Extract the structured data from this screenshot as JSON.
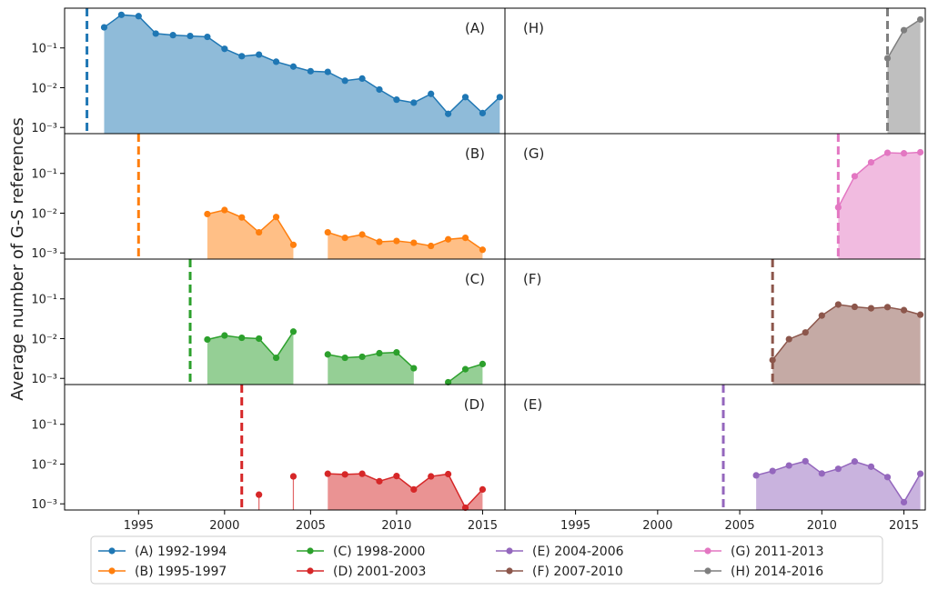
{
  "chart_data": {
    "type": "area",
    "ylabel": "Average number of G-S references",
    "yscale": "log",
    "ylim": [
      0.0007,
      1.0
    ],
    "xlim": [
      1990.7,
      2016.3
    ],
    "x_ticks": [
      1995,
      2000,
      2005,
      2010,
      2015
    ],
    "y_ticks": [
      {
        "value": 0.1,
        "label": "10⁻¹"
      },
      {
        "value": 0.01,
        "label": "10⁻²"
      },
      {
        "value": 0.001,
        "label": "10⁻³"
      }
    ],
    "grid": false,
    "legend_position": "bottom",
    "legend_columns": 4,
    "series": [
      {
        "tag": "(A)",
        "name": "(A) 1992-1994",
        "color": "#1f77b4",
        "start_year": 1992,
        "segments": [
          [
            [
              1993,
              0.33
            ],
            [
              1994,
              0.68
            ],
            [
              1995,
              0.63
            ],
            [
              1996,
              0.23
            ],
            [
              1997,
              0.21
            ],
            [
              1998,
              0.2
            ],
            [
              1999,
              0.19
            ],
            [
              2000,
              0.095
            ],
            [
              2001,
              0.062
            ],
            [
              2002,
              0.068
            ],
            [
              2003,
              0.045
            ],
            [
              2004,
              0.034
            ],
            [
              2005,
              0.026
            ],
            [
              2006,
              0.025
            ],
            [
              2007,
              0.015
            ],
            [
              2008,
              0.017
            ],
            [
              2009,
              0.009
            ],
            [
              2010,
              0.005
            ],
            [
              2011,
              0.0042
            ],
            [
              2012,
              0.007
            ],
            [
              2013,
              0.0022
            ],
            [
              2014,
              0.0058
            ],
            [
              2015,
              0.0023
            ],
            [
              2016,
              0.0058
            ]
          ]
        ],
        "stems": []
      },
      {
        "tag": "(B)",
        "name": "(B) 1995-1997",
        "color": "#ff7f0e",
        "start_year": 1995,
        "segments": [
          [
            [
              1999,
              0.0095
            ],
            [
              2000,
              0.012
            ],
            [
              2001,
              0.0078
            ],
            [
              2002,
              0.0033
            ],
            [
              2003,
              0.008
            ],
            [
              2004,
              0.0016
            ]
          ],
          [
            [
              2006,
              0.0033
            ],
            [
              2007,
              0.0024
            ],
            [
              2008,
              0.0029
            ],
            [
              2009,
              0.0019
            ],
            [
              2010,
              0.002
            ],
            [
              2011,
              0.0018
            ],
            [
              2012,
              0.0015
            ],
            [
              2013,
              0.0022
            ],
            [
              2014,
              0.0024
            ],
            [
              2015,
              0.0012
            ]
          ]
        ],
        "stems": []
      },
      {
        "tag": "(C)",
        "name": "(C) 1998-2000",
        "color": "#2ca02c",
        "start_year": 1998,
        "segments": [
          [
            [
              1999,
              0.0095
            ],
            [
              2000,
              0.012
            ],
            [
              2001,
              0.0105
            ],
            [
              2002,
              0.01
            ],
            [
              2003,
              0.0033
            ],
            [
              2004,
              0.015
            ]
          ],
          [
            [
              2006,
              0.004
            ],
            [
              2007,
              0.0033
            ],
            [
              2008,
              0.0035
            ],
            [
              2009,
              0.0043
            ],
            [
              2010,
              0.0045
            ],
            [
              2011,
              0.0018
            ]
          ],
          [
            [
              2013,
              0.0008
            ],
            [
              2014,
              0.0017
            ],
            [
              2015,
              0.0023
            ]
          ]
        ],
        "stems": []
      },
      {
        "tag": "(D)",
        "name": "(D) 2001-2003",
        "color": "#d62728",
        "start_year": 2001,
        "segments": [
          [
            [
              2006,
              0.0057
            ],
            [
              2007,
              0.0055
            ],
            [
              2008,
              0.0057
            ],
            [
              2009,
              0.0037
            ],
            [
              2010,
              0.005
            ],
            [
              2011,
              0.0023
            ],
            [
              2012,
              0.0049
            ],
            [
              2013,
              0.0056
            ],
            [
              2014,
              0.0008
            ],
            [
              2015,
              0.0023
            ]
          ]
        ],
        "stems": [
          [
            2002,
            0.0017
          ],
          [
            2004,
            0.0049
          ]
        ]
      },
      {
        "tag": "(E)",
        "name": "(E) 2004-2006",
        "color": "#9467bd",
        "start_year": 2004,
        "segments": [
          [
            [
              2006,
              0.0052
            ],
            [
              2007,
              0.0067
            ],
            [
              2008,
              0.0092
            ],
            [
              2009,
              0.0118
            ],
            [
              2010,
              0.0058
            ],
            [
              2011,
              0.0076
            ],
            [
              2012,
              0.0116
            ],
            [
              2013,
              0.0086
            ],
            [
              2014,
              0.0047
            ],
            [
              2015,
              0.0011
            ],
            [
              2016,
              0.0057
            ]
          ]
        ],
        "stems": []
      },
      {
        "tag": "(F)",
        "name": "(F) 2007-2010",
        "color": "#8c564b",
        "start_year": 2007,
        "segments": [
          [
            [
              2007,
              0.0029
            ],
            [
              2008,
              0.0097
            ],
            [
              2009,
              0.0143
            ],
            [
              2010,
              0.038
            ],
            [
              2011,
              0.072
            ],
            [
              2012,
              0.063
            ],
            [
              2013,
              0.058
            ],
            [
              2014,
              0.062
            ],
            [
              2015,
              0.052
            ],
            [
              2016,
              0.04
            ]
          ]
        ],
        "stems": []
      },
      {
        "tag": "(G)",
        "name": "(G) 2011-2013",
        "color": "#e377c2",
        "start_year": 2011,
        "segments": [
          [
            [
              2011,
              0.014
            ],
            [
              2012,
              0.085
            ],
            [
              2013,
              0.19
            ],
            [
              2014,
              0.33
            ],
            [
              2015,
              0.32
            ],
            [
              2016,
              0.34
            ]
          ]
        ],
        "stems": []
      },
      {
        "tag": "(H)",
        "name": "(H) 2014-2016",
        "color": "#7f7f7f",
        "start_year": 2014,
        "segments": [
          [
            [
              2014,
              0.055
            ],
            [
              2015,
              0.28
            ],
            [
              2016,
              0.52
            ]
          ]
        ],
        "stems": []
      }
    ],
    "left_column_order": [
      "(A)",
      "(B)",
      "(C)",
      "(D)"
    ],
    "right_column_order": [
      "(H)",
      "(G)",
      "(F)",
      "(E)"
    ],
    "legend_order": [
      "(A)",
      "(B)",
      "(C)",
      "(D)",
      "(E)",
      "(F)",
      "(G)",
      "(H)"
    ]
  }
}
